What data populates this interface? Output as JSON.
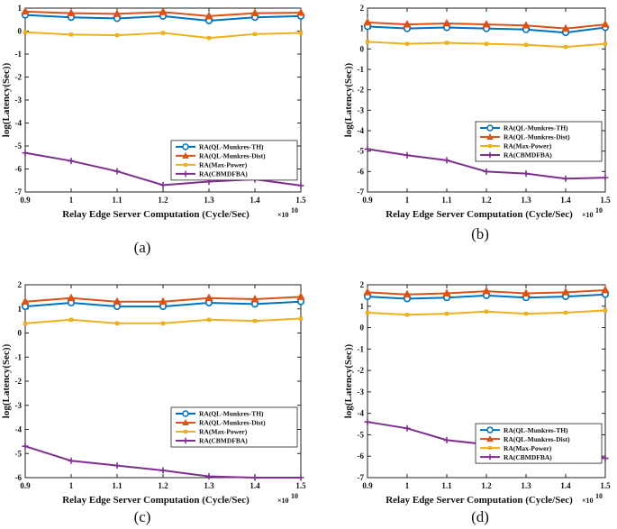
{
  "figure": {
    "panel_captions": [
      "(a)",
      "(b)",
      "(c)",
      "(d)"
    ]
  },
  "colors": {
    "ql_munkres_th": "#0072BD",
    "ql_munkres_dist": "#D95319",
    "max_power": "#EDB120",
    "cbmdfba": "#7E2F8E"
  },
  "chart_data": [
    {
      "type": "line",
      "panel": "(a)",
      "xlabel": "Relay Edge Server Computation (Cycle/Sec)",
      "x_multiplier": "×10",
      "x_multiplier_exp": "10",
      "ylabel": "log(Latency(Sec))",
      "x": [
        0.9,
        1,
        1.1,
        1.2,
        1.3,
        1.4,
        1.5
      ],
      "x_tick_labels": [
        "0.9",
        "1",
        "1.1",
        "1.2",
        "1.3",
        "1.4",
        "1.5"
      ],
      "xlim": [
        0.9,
        1.5
      ],
      "ylim": [
        -7,
        1
      ],
      "y_ticks": [
        1,
        0,
        -1,
        -2,
        -3,
        -4,
        -5,
        -6,
        -7
      ],
      "legend_position": "center-right",
      "series": [
        {
          "name": "RA(QL-Munkres-TH)",
          "marker": "circle",
          "values": [
            0.7,
            0.6,
            0.55,
            0.65,
            0.45,
            0.6,
            0.65
          ]
        },
        {
          "name": "RA(QL-Munkres-Dist)",
          "marker": "triangle",
          "values": [
            0.85,
            0.78,
            0.75,
            0.83,
            0.65,
            0.78,
            0.8
          ]
        },
        {
          "name": "RA(Max-Power)",
          "marker": "square",
          "values": [
            -0.05,
            -0.15,
            -0.18,
            -0.08,
            -0.3,
            -0.13,
            -0.08
          ]
        },
        {
          "name": "RA(CBMDFBA)",
          "marker": "plus",
          "values": [
            -5.3,
            -5.65,
            -6.1,
            -6.7,
            -6.55,
            -6.45,
            -6.72
          ]
        }
      ]
    },
    {
      "type": "line",
      "panel": "(b)",
      "xlabel": "Relay Edge Server Computation (Cycle/Sec)",
      "x_multiplier": "×10",
      "x_multiplier_exp": "10",
      "ylabel": "log(Latency(Sec))",
      "x": [
        0.9,
        1,
        1.1,
        1.2,
        1.3,
        1.4,
        1.5
      ],
      "x_tick_labels": [
        "0.9",
        "1",
        "1.1",
        "1.2",
        "1.3",
        "1.4",
        "1.5"
      ],
      "xlim": [
        0.9,
        1.5
      ],
      "ylim": [
        -7,
        2
      ],
      "y_ticks": [
        2,
        1,
        0,
        -1,
        -2,
        -3,
        -4,
        -5,
        -6,
        -7
      ],
      "legend_position": "lower-right",
      "series": [
        {
          "name": "RA(QL-Munkres-TH)",
          "marker": "circle",
          "values": [
            1.1,
            1.0,
            1.05,
            1.0,
            0.95,
            0.8,
            1.05
          ]
        },
        {
          "name": "RA(QL-Munkres-Dist)",
          "marker": "triangle",
          "values": [
            1.3,
            1.2,
            1.25,
            1.2,
            1.15,
            1.0,
            1.2
          ]
        },
        {
          "name": "RA(Max-Power)",
          "marker": "square",
          "values": [
            0.35,
            0.25,
            0.3,
            0.25,
            0.2,
            0.1,
            0.25
          ]
        },
        {
          "name": "RA(CBMDFBA)",
          "marker": "plus",
          "values": [
            -4.9,
            -5.2,
            -5.45,
            -6.0,
            -6.1,
            -6.35,
            -6.3
          ]
        }
      ]
    },
    {
      "type": "line",
      "panel": "(c)",
      "xlabel": "Relay Edge Server Computation (Cycle/Sec)",
      "x_multiplier": "×10",
      "x_multiplier_exp": "10",
      "ylabel": "log(Latency(Sec))",
      "x": [
        0.9,
        1,
        1.1,
        1.2,
        1.3,
        1.4,
        1.5
      ],
      "x_tick_labels": [
        "0.9",
        "1",
        "1.1",
        "1.2",
        "1.3",
        "1.4",
        "1.5"
      ],
      "xlim": [
        0.9,
        1.5
      ],
      "ylim": [
        -6,
        2
      ],
      "y_ticks": [
        2,
        1,
        0,
        -1,
        -2,
        -3,
        -4,
        -5,
        -6
      ],
      "legend_position": "lower-right",
      "series": [
        {
          "name": "RA(QL-Munkres-TH)",
          "marker": "circle",
          "values": [
            1.1,
            1.25,
            1.1,
            1.1,
            1.25,
            1.2,
            1.3
          ]
        },
        {
          "name": "RA(QL-Munkres-Dist)",
          "marker": "triangle",
          "values": [
            1.3,
            1.45,
            1.3,
            1.3,
            1.45,
            1.4,
            1.5
          ]
        },
        {
          "name": "RA(Max-Power)",
          "marker": "square",
          "values": [
            0.4,
            0.55,
            0.4,
            0.4,
            0.55,
            0.5,
            0.6
          ]
        },
        {
          "name": "RA(CBMDFBA)",
          "marker": "plus",
          "values": [
            -4.7,
            -5.3,
            -5.5,
            -5.7,
            -5.95,
            -6.0,
            -6.0
          ]
        }
      ]
    },
    {
      "type": "line",
      "panel": "(d)",
      "xlabel": "Relay Edge Server Computation (Cycle/Sec)",
      "x_multiplier": "×10",
      "x_multiplier_exp": "10",
      "ylabel": "log(Latency(Sec))",
      "x": [
        0.9,
        1,
        1.1,
        1.2,
        1.3,
        1.4,
        1.5
      ],
      "x_tick_labels": [
        "0.9",
        "1",
        "1.1",
        "1.2",
        "1.3",
        "1.4",
        "1.5"
      ],
      "xlim": [
        0.9,
        1.5
      ],
      "ylim": [
        -7,
        2
      ],
      "y_ticks": [
        2,
        1,
        0,
        -1,
        -2,
        -3,
        -4,
        -5,
        -6,
        -7
      ],
      "legend_position": "center-right",
      "series": [
        {
          "name": "RA(QL-Munkres-TH)",
          "marker": "circle",
          "values": [
            1.45,
            1.35,
            1.4,
            1.5,
            1.4,
            1.45,
            1.55
          ]
        },
        {
          "name": "RA(QL-Munkres-Dist)",
          "marker": "triangle",
          "values": [
            1.65,
            1.55,
            1.6,
            1.7,
            1.6,
            1.65,
            1.75
          ]
        },
        {
          "name": "RA(Max-Power)",
          "marker": "square",
          "values": [
            0.7,
            0.6,
            0.65,
            0.75,
            0.65,
            0.7,
            0.8
          ]
        },
        {
          "name": "RA(CBMDFBA)",
          "marker": "plus",
          "values": [
            -4.4,
            -4.7,
            -5.25,
            -5.45,
            -5.65,
            -5.7,
            -6.1
          ]
        }
      ]
    }
  ]
}
